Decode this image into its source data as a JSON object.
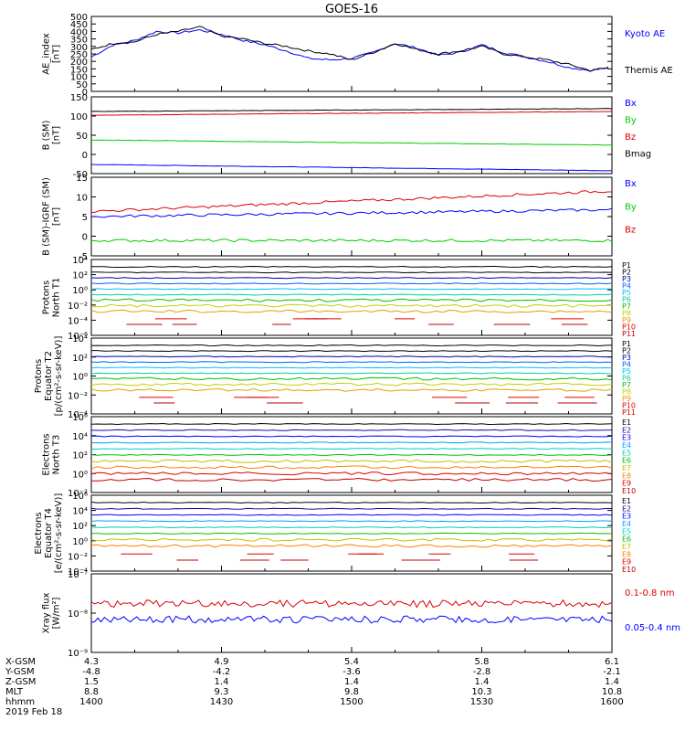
{
  "title": "GOES-16",
  "colors": {
    "black": "#000000",
    "blue": "#0000ff",
    "green": "#00cc00",
    "red": "#dd0000"
  },
  "chart_data": [
    {
      "type": "line",
      "ylabel": "AE_index\n[nT]",
      "ylim": [
        0,
        500
      ],
      "yticks": [
        "0",
        "50",
        "100",
        "150",
        "200",
        "250",
        "300",
        "350",
        "400",
        "450",
        "500"
      ],
      "x": [
        1400,
        1405,
        1410,
        1415,
        1420,
        1425,
        1430,
        1435,
        1440,
        1445,
        1450,
        1455,
        1500,
        1505,
        1510,
        1515,
        1520,
        1525,
        1530,
        1535,
        1540,
        1545,
        1550,
        1555,
        1600
      ],
      "series": [
        {
          "name": "Kyoto AE",
          "color": "blue",
          "values": [
            230,
            310,
            340,
            400,
            390,
            410,
            380,
            340,
            310,
            270,
            220,
            210,
            220,
            260,
            320,
            290,
            240,
            260,
            310,
            260,
            230,
            200,
            160,
            140,
            160
          ]
        },
        {
          "name": "Themis AE",
          "color": "black",
          "values": [
            280,
            320,
            330,
            380,
            400,
            430,
            370,
            350,
            320,
            300,
            270,
            250,
            210,
            260,
            320,
            280,
            250,
            270,
            300,
            250,
            230,
            210,
            180,
            140,
            160
          ]
        }
      ]
    },
    {
      "type": "line",
      "ylabel": "B (SM)\n[nT]",
      "ylim": [
        -60,
        150
      ],
      "yticks": [
        "-50",
        "0",
        "50",
        "100",
        "150"
      ],
      "series": [
        {
          "name": "Bx",
          "color": "blue",
          "start": -35,
          "end": -52
        },
        {
          "name": "By",
          "color": "green",
          "start": 32,
          "end": 18
        },
        {
          "name": "Bz",
          "color": "red",
          "start": 100,
          "end": 110
        },
        {
          "name": "Bmag",
          "color": "black",
          "start": 110,
          "end": 118
        }
      ]
    },
    {
      "type": "line",
      "ylabel": "B (SM)-IGRF (SM)\n[nT]",
      "ylim": [
        -7,
        16
      ],
      "yticks": [
        "-5",
        "0",
        "5",
        "10",
        "15"
      ],
      "series": [
        {
          "name": "Bx",
          "color": "blue",
          "start": 4.5,
          "end": 6.5
        },
        {
          "name": "By",
          "color": "green",
          "start": -2.5,
          "end": -2.5
        },
        {
          "name": "Bz",
          "color": "red",
          "start": 6.0,
          "end": 12.0
        }
      ]
    },
    {
      "type": "line",
      "ylabel": "Protons\nNorth T1",
      "scale": "log",
      "yticks": [
        "10⁻⁶",
        "10⁻⁴",
        "10⁻²",
        "10⁰",
        "10²",
        "10⁴"
      ],
      "legend": [
        "P1",
        "P2",
        "P3",
        "P4",
        "P5",
        "P6",
        "P7",
        "P8",
        "P9",
        "P10",
        "P11"
      ]
    },
    {
      "type": "line",
      "ylabel": "Protons\nEquator T2\n[p/(cm²-s-sr-keV)]",
      "scale": "log",
      "yticks": [
        "10⁻⁴",
        "10⁻²",
        "10⁰",
        "10²",
        "10⁴"
      ],
      "legend": [
        "P1",
        "P2",
        "P3",
        "P4",
        "P5",
        "P6",
        "P7",
        "P8",
        "P9",
        "P10",
        "P11"
      ]
    },
    {
      "type": "line",
      "ylabel": "Electrons\nNorth T3",
      "scale": "log",
      "yticks": [
        "10⁻²",
        "10⁰",
        "10²",
        "10⁴",
        "10⁶"
      ],
      "legend": [
        "E1",
        "E2",
        "E3",
        "E4",
        "E5",
        "E6",
        "E7",
        "E8",
        "E9",
        "E10"
      ]
    },
    {
      "type": "line",
      "ylabel": "Electrons\nEquator T4\n[e/(cm²-s-sr-keV)]",
      "scale": "log",
      "yticks": [
        "10⁻⁴",
        "10⁻²",
        "10⁰",
        "10²",
        "10⁴",
        "10⁶"
      ],
      "legend": [
        "E1",
        "E2",
        "E3",
        "E4",
        "E5",
        "E6",
        "E7",
        "E8",
        "E9",
        "E10"
      ]
    },
    {
      "type": "line",
      "ylabel": "Xray flux\n[W/m²]",
      "scale": "log",
      "yticks": [
        "10⁻⁹",
        "10⁻⁸",
        "10⁻⁷"
      ],
      "series": [
        {
          "name": "0.1-0.8 nm",
          "color": "red",
          "value": "2.0e-8"
        },
        {
          "name": "0.05-0.4 nm",
          "color": "blue",
          "value": "6.0e-9"
        }
      ]
    }
  ],
  "x_axis": {
    "row_labels": [
      "X-GSM",
      "Y-GSM",
      "Z-GSM",
      "MLT",
      "hhmm",
      "2019 Feb 18"
    ],
    "columns": [
      {
        "x-gsm": "4.3",
        "y-gsm": "-4.8",
        "z-gsm": "1.5",
        "mlt": "8.8",
        "hhmm": "1400"
      },
      {
        "x-gsm": "4.9",
        "y-gsm": "-4.2",
        "z-gsm": "1.4",
        "mlt": "9.3",
        "hhmm": "1430"
      },
      {
        "x-gsm": "5.4",
        "y-gsm": "-3.6",
        "z-gsm": "1.4",
        "mlt": "9.8",
        "hhmm": "1500"
      },
      {
        "x-gsm": "5.8",
        "y-gsm": "-2.8",
        "z-gsm": "1.4",
        "mlt": "10.3",
        "hhmm": "1530"
      },
      {
        "x-gsm": "6.1",
        "y-gsm": "-2.1",
        "z-gsm": "1.4",
        "mlt": "10.8",
        "hhmm": "1600"
      }
    ]
  }
}
